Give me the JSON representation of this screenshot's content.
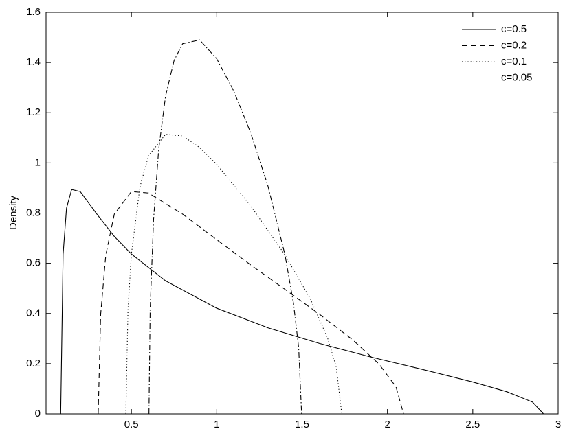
{
  "chart_data": {
    "type": "line",
    "ylabel": "Density",
    "xlim": [
      0,
      3
    ],
    "xticks": [
      0.5,
      1,
      1.5,
      2,
      2.5,
      3
    ],
    "ylim": [
      0,
      1.6
    ],
    "yticks": [
      0,
      0.2,
      0.4,
      0.6,
      0.8,
      1,
      1.2,
      1.4,
      1.6
    ],
    "grid": false,
    "legend": "upper right",
    "series": [
      {
        "name": "c=0.5",
        "color": "#000000",
        "dash": "solid",
        "x": [
          0.0858,
          0.1,
          0.12,
          0.15,
          0.2,
          0.3,
          0.4,
          0.5,
          0.7,
          1.0,
          1.3,
          1.6,
          1.9,
          2.2,
          2.5,
          2.7,
          2.85,
          2.9142
        ],
        "values": [
          0,
          0.636,
          0.82,
          0.894,
          0.886,
          0.794,
          0.707,
          0.637,
          0.53,
          0.421,
          0.343,
          0.281,
          0.227,
          0.178,
          0.127,
          0.088,
          0.047,
          0
        ]
      },
      {
        "name": "c=0.2",
        "color": "#000000",
        "dash": "dashed",
        "x": [
          0.3056,
          0.32,
          0.35,
          0.4,
          0.5,
          0.6,
          0.8,
          1.0,
          1.2,
          1.4,
          1.6,
          1.8,
          1.95,
          2.05,
          2.0944
        ],
        "values": [
          0,
          0.397,
          0.633,
          0.796,
          0.886,
          0.88,
          0.796,
          0.694,
          0.593,
          0.496,
          0.398,
          0.293,
          0.199,
          0.108,
          0
        ]
      },
      {
        "name": "c=0.1",
        "color": "#000000",
        "dash": "dotted",
        "x": [
          0.4675,
          0.48,
          0.5,
          0.55,
          0.6,
          0.7,
          0.8,
          0.9,
          1.0,
          1.2,
          1.4,
          1.55,
          1.65,
          1.7,
          1.7325
        ],
        "values": [
          0,
          0.415,
          0.637,
          0.904,
          1.028,
          1.114,
          1.108,
          1.061,
          0.994,
          0.828,
          0.633,
          0.456,
          0.301,
          0.187,
          0
        ]
      },
      {
        "name": "c=0.05",
        "color": "#000000",
        "dash": "dashdot",
        "x": [
          0.6028,
          0.61,
          0.63,
          0.66,
          0.7,
          0.75,
          0.8,
          0.9,
          1.0,
          1.1,
          1.2,
          1.3,
          1.4,
          1.45,
          1.48,
          1.4972
        ],
        "values": [
          0,
          0.417,
          0.776,
          1.055,
          1.266,
          1.408,
          1.475,
          1.49,
          1.415,
          1.286,
          1.118,
          0.908,
          0.633,
          0.439,
          0.264,
          0
        ]
      }
    ]
  }
}
